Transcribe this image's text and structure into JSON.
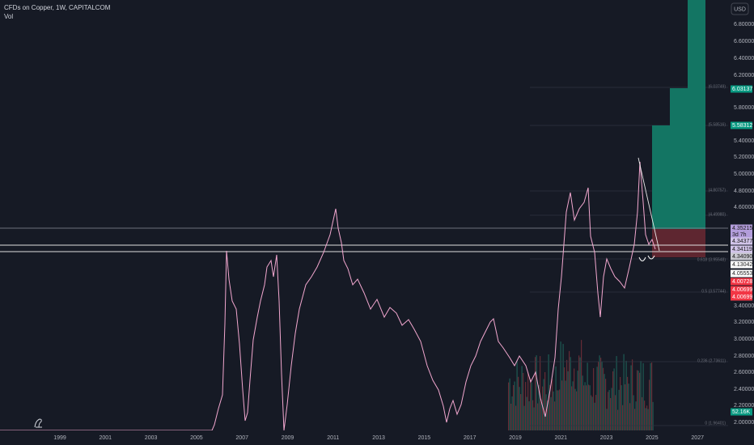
{
  "header": {
    "title": "CFDs on Copper, 1W, CAPITALCOM",
    "indicator": "Vol"
  },
  "currency_button": "USD",
  "price_axis": [
    "6.80000",
    "6.60000",
    "6.40000",
    "6.20000",
    "5.80000",
    "5.40000",
    "5.20000",
    "5.00000",
    "4.80000",
    "4.60000",
    "3.40000",
    "3.20000",
    "3.00000",
    "2.80000",
    "2.60000",
    "2.40000",
    "2.20000",
    "2.00000"
  ],
  "price_tags": [
    "6.03137",
    "5.58312",
    "4.35215",
    "3d 7h",
    "4.34377",
    "4.34119",
    "4.34090",
    "4.13042",
    "4.05553",
    "4.00728",
    "4.00699",
    "4.00699",
    "52.16K"
  ],
  "fib_labels": [
    "(6.03749)",
    "(5.58516)",
    "(4.80757)",
    "(4.49980)",
    "0.618 (3.95548)",
    "0.5 (3.57744)",
    "0.236 (2.73611)",
    "0 (1.96401)"
  ],
  "time_axis": [
    "1999",
    "2001",
    "2003",
    "2005",
    "2007",
    "2009",
    "2011",
    "2013",
    "2015",
    "2017",
    "2019",
    "2021",
    "2023",
    "2025",
    "2027"
  ]
}
